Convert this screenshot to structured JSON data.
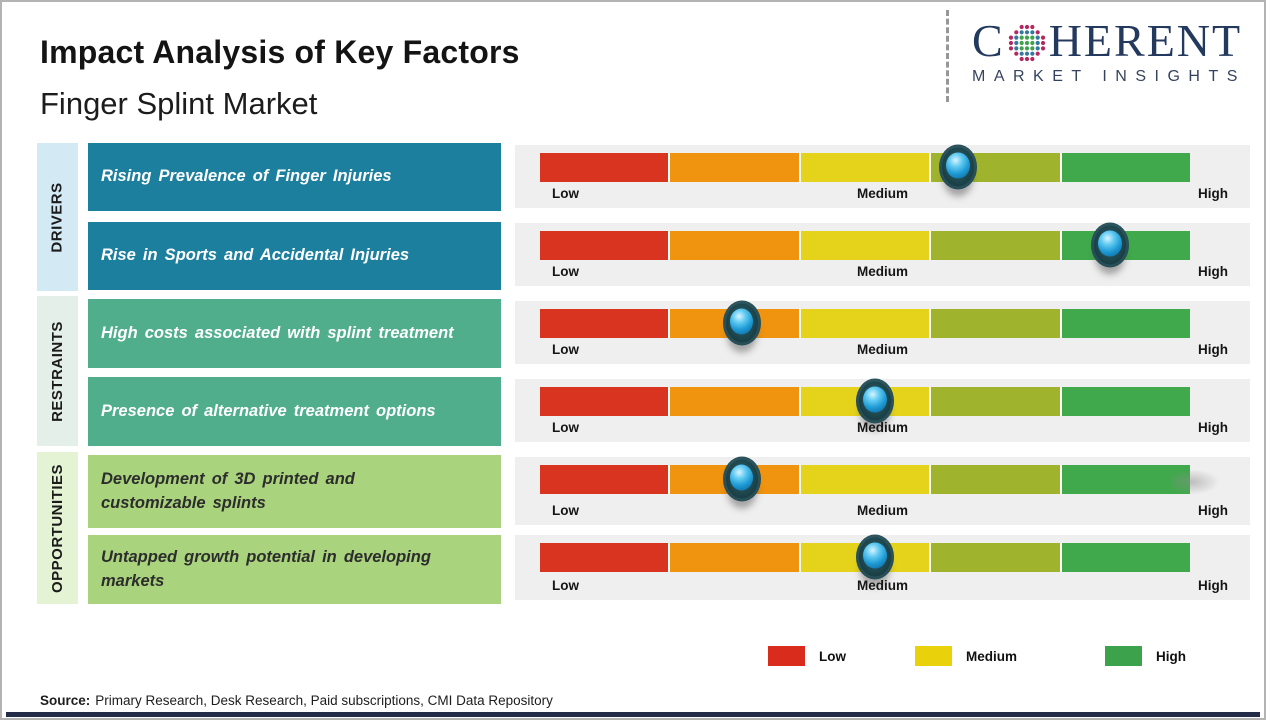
{
  "header": {
    "title": "Impact Analysis of Key Factors",
    "subtitle": "Finger Splint Market",
    "logo": {
      "brand_prefix": "C",
      "brand_suffix": "HERENT",
      "tagline": "MARKET INSIGHTS",
      "navy": "#24395e",
      "globe_colors": {
        "green": "#3fa24a",
        "blue": "#33789f",
        "crimson": "#b5285f"
      }
    }
  },
  "groups": [
    {
      "label": "DRIVERS"
    },
    {
      "label": "RESTRAINTS"
    },
    {
      "label": "OPPORTUNITIES"
    }
  ],
  "rows": [
    {
      "group": "DRIVERS",
      "factor": "Rising Prevalence of Finger Injuries",
      "impact_percent": 64.3,
      "impact_level": "Medium-High"
    },
    {
      "group": "DRIVERS",
      "factor": "Rise in Sports and Accidental Injuries",
      "impact_percent": 87.7,
      "impact_level": "High"
    },
    {
      "group": "RESTRAINTS",
      "factor": "High costs associated with splint treatment",
      "impact_percent": 31,
      "impact_level": "Low-Medium"
    },
    {
      "group": "RESTRAINTS",
      "factor": "Presence of alternative treatment options",
      "impact_percent": 51.5,
      "impact_level": "Medium"
    },
    {
      "group": "OPPORTUNITIES",
      "factor": "Development of 3D printed and customizable splints",
      "impact_percent": 31,
      "impact_level": "Low-Medium"
    },
    {
      "group": "OPPORTUNITIES",
      "factor": "Untapped growth potential in developing markets",
      "impact_percent": 51.5,
      "impact_level": "Medium"
    }
  ],
  "scale": {
    "low": "Low",
    "medium": "Medium",
    "high": "High",
    "segment_colors": [
      "#d8341f",
      "#f0930e",
      "#e5d31b",
      "#9fb42c",
      "#3fa94b"
    ]
  },
  "legend": {
    "items": [
      {
        "label": "Low",
        "color": "#da2c1c"
      },
      {
        "label": "Medium",
        "color": "#e9d20c"
      },
      {
        "label": "High",
        "color": "#3ca24b"
      }
    ]
  },
  "source": {
    "prefix": "Source:",
    "text": "Primary Research, Desk Research, Paid subscriptions, CMI Data Repository"
  },
  "colors": {
    "driver_box": "#1d7f9e",
    "restraint_box": "#50ae8d",
    "opportunity_box": "#a9d37c",
    "driver_strip": "#d3eaf4",
    "restraint_strip": "#e4efe9",
    "opportunity_strip": "#e3f3d4",
    "row_background": "#efefef",
    "bottom_bar": "#222c49"
  }
}
